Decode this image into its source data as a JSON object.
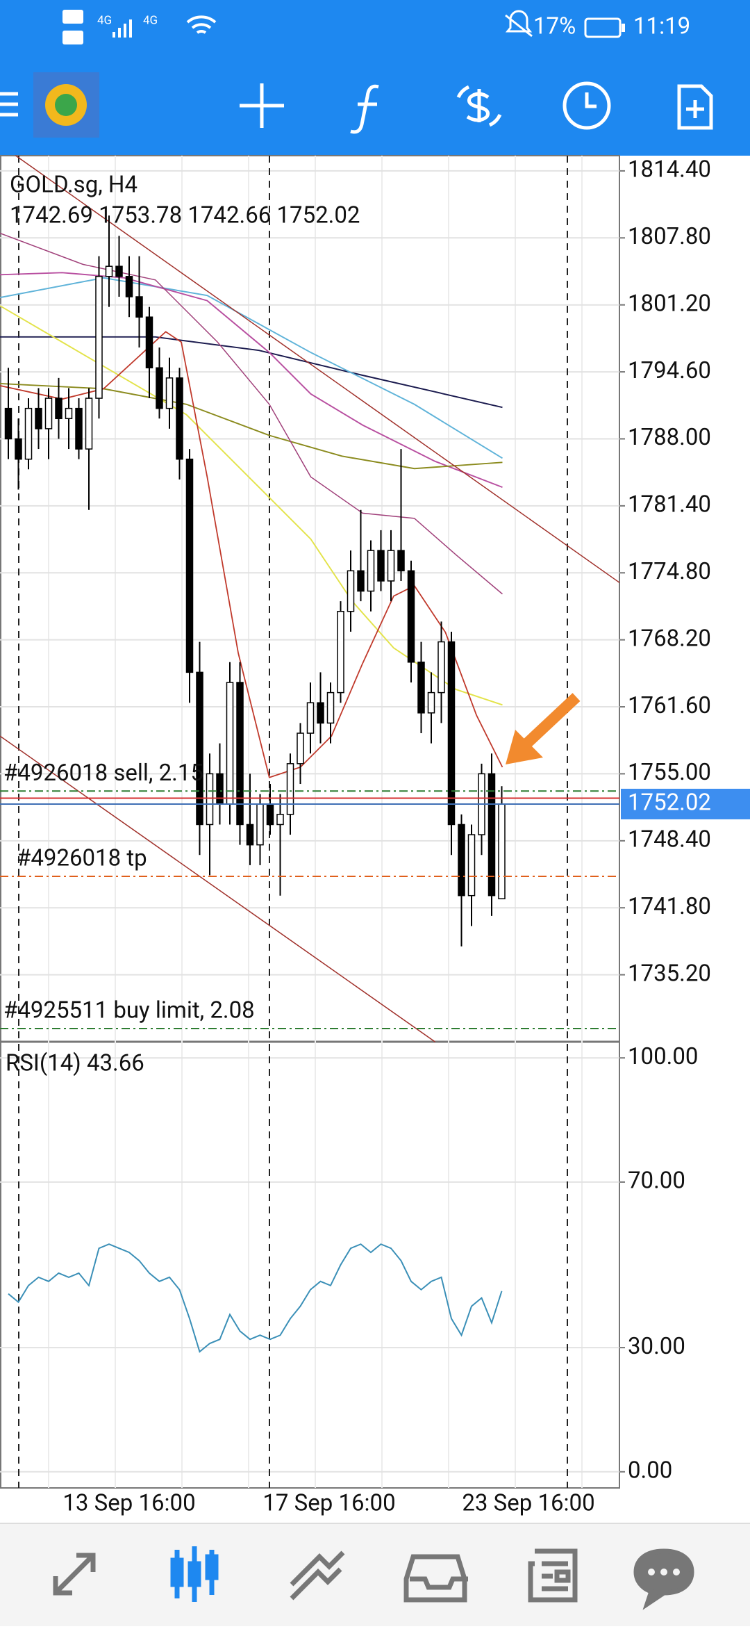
{
  "status_bar": {
    "network": "4G",
    "battery": "17%",
    "time": "11:19"
  },
  "chart_data": [
    {
      "type": "candlestick",
      "title": "GOLD.sg, H4",
      "ohlc_label": "1742.69 1753.78 1742.66 1752.02",
      "candles": {
        "open": [
          1791,
          1788,
          1786,
          1791,
          1789,
          1792,
          1790,
          1791,
          1787,
          1792,
          1804,
          1805,
          1804,
          1802,
          1800,
          1795,
          1791,
          1794,
          1786,
          1765,
          1750,
          1755,
          1752,
          1764,
          1750,
          1748,
          1752,
          1750,
          1751,
          1756,
          1759,
          1762,
          1760,
          1763,
          1771,
          1775,
          1773,
          1777,
          1774,
          1777,
          1775,
          1766,
          1761,
          1763,
          1768,
          1750,
          1743,
          1749,
          1755,
          1742.69
        ],
        "high": [
          1795,
          1790,
          1792,
          1793,
          1793,
          1794,
          1793,
          1792,
          1793,
          1806,
          1810,
          1808,
          1806,
          1806,
          1801,
          1797,
          1796,
          1795,
          1787,
          1768,
          1757,
          1758,
          1766,
          1766,
          1755,
          1753,
          1754,
          1753,
          1757,
          1760,
          1764,
          1765,
          1764,
          1772,
          1777,
          1781,
          1778,
          1779,
          1779,
          1787,
          1776,
          1768,
          1765,
          1770,
          1769,
          1751,
          1750,
          1756,
          1757,
          1753.78
        ],
        "low": [
          1786,
          1783,
          1785,
          1787,
          1786,
          1788,
          1787,
          1786,
          1781,
          1790,
          1801,
          1802,
          1800,
          1797,
          1792,
          1790,
          1789,
          1784,
          1762,
          1747,
          1745,
          1750,
          1750,
          1748,
          1746,
          1746,
          1749,
          1743,
          1749,
          1754,
          1757,
          1758,
          1758,
          1762,
          1769,
          1772,
          1771,
          1773,
          1772,
          1774,
          1764,
          1759,
          1758,
          1760,
          1747,
          1738,
          1740,
          1747,
          1741,
          1742.66
        ],
        "close": [
          1788,
          1786,
          1791,
          1789,
          1792,
          1790,
          1791,
          1787,
          1792,
          1804,
          1805,
          1804,
          1802,
          1800,
          1795,
          1791,
          1794,
          1786,
          1765,
          1750,
          1755,
          1752,
          1764,
          1750,
          1748,
          1752,
          1750,
          1751,
          1756,
          1759,
          1762,
          1760,
          1763,
          1771,
          1775,
          1773,
          1777,
          1774,
          1777,
          1775,
          1766,
          1761,
          1763,
          1768,
          1750,
          1743,
          1749,
          1755,
          1743,
          1752.02
        ]
      },
      "bull_color": "#ffffff",
      "bear_color": "#000000",
      "ylim": [
        1728.6,
        1815.9
      ],
      "yticks": [
        {
          "value": 1814.4,
          "label": "1814.40"
        },
        {
          "value": 1807.8,
          "label": "1807.80"
        },
        {
          "value": 1801.2,
          "label": "1801.20"
        },
        {
          "value": 1794.6,
          "label": "1794.60"
        },
        {
          "value": 1788,
          "label": "1788.00"
        },
        {
          "value": 1781.4,
          "label": "1781.40"
        },
        {
          "value": 1774.8,
          "label": "1774.80"
        },
        {
          "value": 1768.2,
          "label": "1768.20"
        },
        {
          "value": 1761.6,
          "label": "1761.60"
        },
        {
          "value": 1755,
          "label": "1755.00"
        },
        {
          "value": 1748.4,
          "label": "1748.40"
        },
        {
          "value": 1741.8,
          "label": "1741.80"
        },
        {
          "value": 1735.2,
          "label": "1735.20"
        }
      ],
      "price_lines": [
        {
          "label": "#4926018 sell, 2.15",
          "value": 1753.3,
          "color": "#2e7d32"
        },
        {
          "value": 1752.6,
          "color": "#d32f2f"
        },
        {
          "value": 1752.02,
          "color": "#3f6fb5"
        },
        {
          "label": "#4926018 tp",
          "value": 1744.9,
          "color": "#e0601c"
        },
        {
          "label": "#4925511 buy limit, 2.08",
          "value": 1729.9,
          "color": "#2e7d32"
        }
      ],
      "price_tag": {
        "value": 1752.02,
        "label": "1752.02",
        "color": "#3d8ef0"
      },
      "date_labels": [
        "13 Sep 16:00",
        "17 Sep 16:00",
        "23 Sep 16:00"
      ],
      "grid": true
    },
    {
      "type": "line",
      "title": "RSI(14) 43.66",
      "color": "#3a8fb7",
      "values": [
        43,
        41,
        45,
        47,
        46,
        48,
        47,
        48,
        45,
        54,
        55,
        54,
        53,
        51,
        48,
        46,
        47,
        44,
        37,
        29,
        31,
        32,
        38,
        34,
        32,
        33,
        32,
        33,
        37,
        40,
        44,
        46,
        45,
        50,
        54,
        55,
        53,
        55,
        54,
        51,
        46,
        44,
        46,
        47,
        37,
        33,
        40,
        42,
        36,
        43.66
      ],
      "ylim": [
        -3.9,
        103.9
      ],
      "yticks": [
        {
          "value": 0,
          "label": "0.00"
        },
        {
          "value": 30,
          "label": "30.00"
        },
        {
          "value": 70,
          "label": "70.00"
        },
        {
          "value": 100,
          "label": "100.00"
        }
      ],
      "grid": true
    }
  ]
}
